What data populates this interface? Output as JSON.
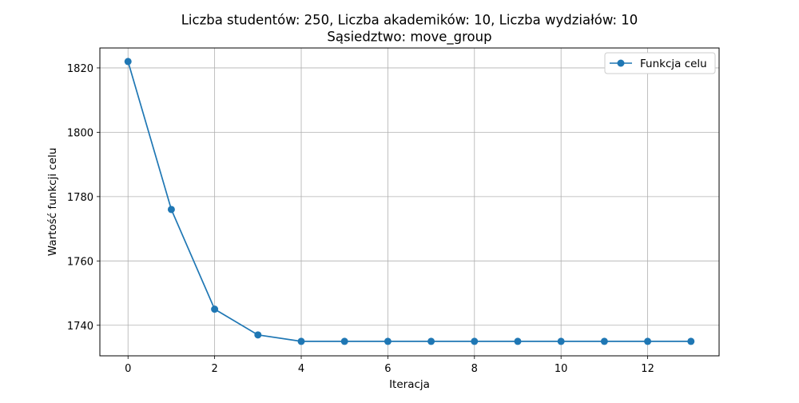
{
  "chart_data": {
    "type": "line",
    "title": "Liczba studentów: 250, Liczba akademików: 10, Liczba wydziałów: 10",
    "subtitle": "Sąsiedztwo: move_group",
    "xlabel": "Iteracja",
    "ylabel": "Wartość funkcji celu",
    "xlim": [
      -0.65,
      13.65
    ],
    "ylim": [
      1730.5,
      1826.2
    ],
    "xticks": [
      0,
      2,
      4,
      6,
      8,
      10,
      12
    ],
    "yticks": [
      1740,
      1760,
      1780,
      1800,
      1820
    ],
    "grid": true,
    "legend_position": "upper right",
    "series": [
      {
        "name": "Funkcja celu",
        "color": "#1f77b4",
        "marker": "circle",
        "x": [
          0,
          1,
          2,
          3,
          4,
          5,
          6,
          7,
          8,
          9,
          10,
          11,
          12,
          13
        ],
        "values": [
          1822,
          1776,
          1745,
          1737,
          1735,
          1735,
          1735,
          1735,
          1735,
          1735,
          1735,
          1735,
          1735,
          1735
        ]
      }
    ]
  }
}
